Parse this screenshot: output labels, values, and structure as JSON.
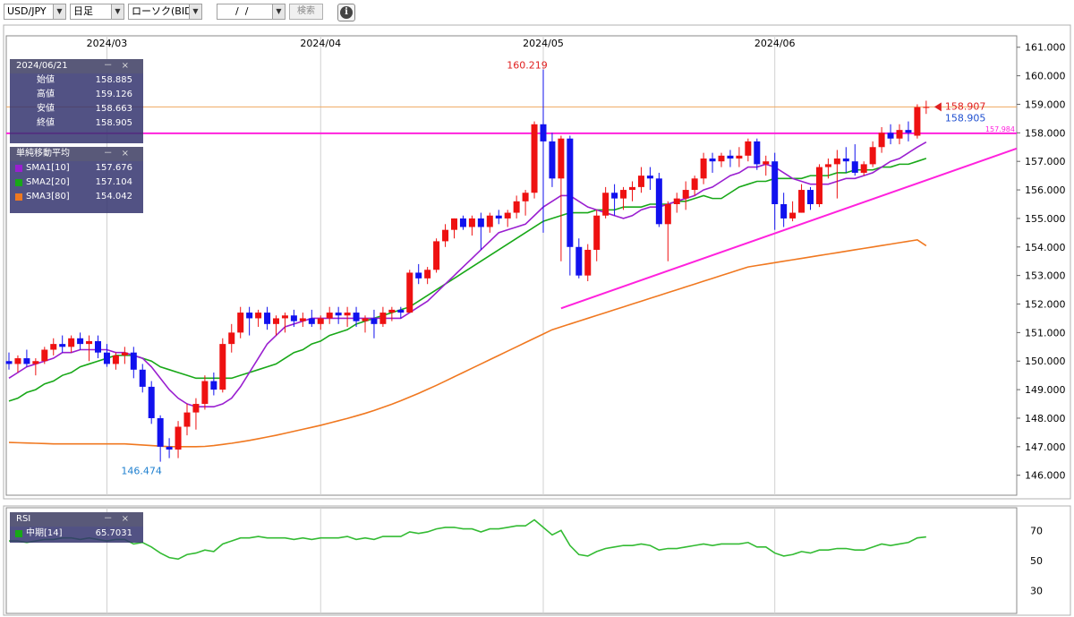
{
  "toolbar": {
    "symbol": "USD/JPY",
    "timeframe": "日足",
    "chart_kind": "ローソク(BID)",
    "date_value": "  /  /",
    "search_label": "検索",
    "info_icon": "info-icon"
  },
  "ohlc_panel": {
    "date": "2024/06/21",
    "minimize": "－",
    "close_btn": "×",
    "rows": [
      {
        "label": "始値",
        "value": "158.885"
      },
      {
        "label": "高値",
        "value": "159.126"
      },
      {
        "label": "安値",
        "value": "158.663"
      },
      {
        "label": "終値",
        "value": "158.905"
      }
    ]
  },
  "sma_panel": {
    "title": "単純移動平均",
    "minimize": "－",
    "close_btn": "×",
    "rows": [
      {
        "label": "SMA1[10]",
        "value": "157.676",
        "color": "#9a1fd0"
      },
      {
        "label": "SMA2[20]",
        "value": "157.104",
        "color": "#18a818"
      },
      {
        "label": "SMA3[80]",
        "value": "154.042",
        "color": "#f07820"
      }
    ]
  },
  "rsi_panel": {
    "title": "RSI",
    "minimize": "－",
    "close_btn": "×",
    "rows": [
      {
        "label": "中期[14]",
        "value": "65.7031",
        "color": "#18a818"
      }
    ]
  },
  "colors": {
    "up": "#ee1111",
    "down": "#1111ee",
    "sma10": "#9a1fd0",
    "sma20": "#18a818",
    "sma80": "#f07820",
    "trendline": "#ff22dd",
    "rsi": "#33bb33"
  },
  "chart_data": {
    "type": "candlestick",
    "x_labels": [
      "2024/03",
      "2024/04",
      "2024/05",
      "2024/06"
    ],
    "y_ticks": [
      "161.000",
      "160.000",
      "159.000",
      "158.000",
      "157.000",
      "156.000",
      "155.000",
      "154.000",
      "153.000",
      "152.000",
      "151.000",
      "150.000",
      "149.000",
      "148.000",
      "147.000",
      "146.000"
    ],
    "ylim": [
      145.3,
      161.4
    ],
    "annotations": {
      "high_label": "160.219",
      "low_label": "146.474",
      "last_bid": "158.907",
      "last_close": "158.905",
      "hline_label": "157.984",
      "hline_value": 157.984,
      "orange_line_value": 158.907
    },
    "candles": [
      [
        150.0,
        150.3,
        149.7,
        149.9
      ],
      [
        149.9,
        150.2,
        149.6,
        150.1
      ],
      [
        150.1,
        150.4,
        149.8,
        149.9
      ],
      [
        149.9,
        150.1,
        149.5,
        150.0
      ],
      [
        150.0,
        150.5,
        149.9,
        150.4
      ],
      [
        150.4,
        150.8,
        150.2,
        150.6
      ],
      [
        150.6,
        150.9,
        150.3,
        150.5
      ],
      [
        150.5,
        150.9,
        150.3,
        150.8
      ],
      [
        150.8,
        151.0,
        150.4,
        150.6
      ],
      [
        150.6,
        150.9,
        150.0,
        150.7
      ],
      [
        150.7,
        150.9,
        150.1,
        150.3
      ],
      [
        150.3,
        150.6,
        149.8,
        149.9
      ],
      [
        149.9,
        150.3,
        149.7,
        150.2
      ],
      [
        150.2,
        150.5,
        149.9,
        150.3
      ],
      [
        150.3,
        150.5,
        149.4,
        149.7
      ],
      [
        149.7,
        149.9,
        148.9,
        149.1
      ],
      [
        149.1,
        149.3,
        147.8,
        148.0
      ],
      [
        148.0,
        148.1,
        146.474,
        147.0
      ],
      [
        147.0,
        147.3,
        146.6,
        146.9
      ],
      [
        146.9,
        147.9,
        146.6,
        147.7
      ],
      [
        147.7,
        148.5,
        147.4,
        148.2
      ],
      [
        148.2,
        148.7,
        147.6,
        148.5
      ],
      [
        148.5,
        149.5,
        148.3,
        149.3
      ],
      [
        149.3,
        149.6,
        148.8,
        149.0
      ],
      [
        149.0,
        150.8,
        148.9,
        150.6
      ],
      [
        150.6,
        151.3,
        150.3,
        151.0
      ],
      [
        151.0,
        151.9,
        150.8,
        151.7
      ],
      [
        151.7,
        151.9,
        150.9,
        151.5
      ],
      [
        151.5,
        151.8,
        151.2,
        151.7
      ],
      [
        151.7,
        151.9,
        151.1,
        151.3
      ],
      [
        151.3,
        151.6,
        150.9,
        151.5
      ],
      [
        151.5,
        151.7,
        151.0,
        151.6
      ],
      [
        151.6,
        151.8,
        151.2,
        151.4
      ],
      [
        151.4,
        151.7,
        151.2,
        151.5
      ],
      [
        151.5,
        151.8,
        151.2,
        151.3
      ],
      [
        151.3,
        151.6,
        151.1,
        151.5
      ],
      [
        151.5,
        151.9,
        151.3,
        151.7
      ],
      [
        151.7,
        151.9,
        151.3,
        151.6
      ],
      [
        151.6,
        151.9,
        151.2,
        151.7
      ],
      [
        151.7,
        151.9,
        151.2,
        151.4
      ],
      [
        151.4,
        151.6,
        151.0,
        151.5
      ],
      [
        151.5,
        151.8,
        150.8,
        151.3
      ],
      [
        151.3,
        151.9,
        151.2,
        151.7
      ],
      [
        151.7,
        151.9,
        151.4,
        151.8
      ],
      [
        151.8,
        151.9,
        151.5,
        151.7
      ],
      [
        151.7,
        153.2,
        151.7,
        153.1
      ],
      [
        153.1,
        153.4,
        152.7,
        152.9
      ],
      [
        152.9,
        153.3,
        152.7,
        153.2
      ],
      [
        153.2,
        154.3,
        153.1,
        154.2
      ],
      [
        154.2,
        154.8,
        154.0,
        154.6
      ],
      [
        154.6,
        155.0,
        154.3,
        155.0
      ],
      [
        155.0,
        155.1,
        154.6,
        154.7
      ],
      [
        154.7,
        155.1,
        154.4,
        155.0
      ],
      [
        155.0,
        155.2,
        153.9,
        154.7
      ],
      [
        154.7,
        155.2,
        154.5,
        155.1
      ],
      [
        155.1,
        155.3,
        154.8,
        155.0
      ],
      [
        155.0,
        155.3,
        154.7,
        155.2
      ],
      [
        155.2,
        155.8,
        155.0,
        155.6
      ],
      [
        155.6,
        156.0,
        155.1,
        155.9
      ],
      [
        155.9,
        158.4,
        155.7,
        158.3
      ],
      [
        158.3,
        160.219,
        154.5,
        157.7
      ],
      [
        157.7,
        158.0,
        156.1,
        156.4
      ],
      [
        156.4,
        157.9,
        153.5,
        157.8
      ],
      [
        157.8,
        157.9,
        153.0,
        154.0
      ],
      [
        154.0,
        154.3,
        152.9,
        153.0
      ],
      [
        153.0,
        154.1,
        152.8,
        153.9
      ],
      [
        153.9,
        155.3,
        153.5,
        155.1
      ],
      [
        155.1,
        156.1,
        155.0,
        155.9
      ],
      [
        155.9,
        156.2,
        155.1,
        155.7
      ],
      [
        155.7,
        156.1,
        155.3,
        156.0
      ],
      [
        156.0,
        156.3,
        155.6,
        156.1
      ],
      [
        156.1,
        156.8,
        155.9,
        156.5
      ],
      [
        156.5,
        156.8,
        156.0,
        156.4
      ],
      [
        156.4,
        156.6,
        154.7,
        154.8
      ],
      [
        154.8,
        155.6,
        153.5,
        155.5
      ],
      [
        155.5,
        155.9,
        155.2,
        155.7
      ],
      [
        155.7,
        156.3,
        155.3,
        156.0
      ],
      [
        156.0,
        156.5,
        155.8,
        156.4
      ],
      [
        156.4,
        157.3,
        156.2,
        157.1
      ],
      [
        157.1,
        157.3,
        156.6,
        157.0
      ],
      [
        157.0,
        157.3,
        156.8,
        157.2
      ],
      [
        157.2,
        157.4,
        156.8,
        157.1
      ],
      [
        157.1,
        157.5,
        156.8,
        157.2
      ],
      [
        157.2,
        157.8,
        157.0,
        157.7
      ],
      [
        157.7,
        157.8,
        156.7,
        156.9
      ],
      [
        156.9,
        157.2,
        156.5,
        157.0
      ],
      [
        157.0,
        157.3,
        154.6,
        155.5
      ],
      [
        155.5,
        155.9,
        154.7,
        155.0
      ],
      [
        155.0,
        155.6,
        154.9,
        155.2
      ],
      [
        155.2,
        156.2,
        155.2,
        156.0
      ],
      [
        156.0,
        156.1,
        155.3,
        155.5
      ],
      [
        155.5,
        156.9,
        155.4,
        156.8
      ],
      [
        156.8,
        157.1,
        156.4,
        156.9
      ],
      [
        156.9,
        157.4,
        155.7,
        157.1
      ],
      [
        157.1,
        157.5,
        156.6,
        157.0
      ],
      [
        157.0,
        157.6,
        156.5,
        156.6
      ],
      [
        156.6,
        157.0,
        156.5,
        156.9
      ],
      [
        156.9,
        157.7,
        156.8,
        157.5
      ],
      [
        157.5,
        158.2,
        157.3,
        158.0
      ],
      [
        158.0,
        158.3,
        157.6,
        157.8
      ],
      [
        157.8,
        158.3,
        157.6,
        158.1
      ],
      [
        158.1,
        158.4,
        157.7,
        158.0
      ],
      [
        157.9,
        159.0,
        157.8,
        158.9
      ],
      [
        158.885,
        159.126,
        158.663,
        158.905
      ]
    ],
    "sma10": [
      149.4,
      149.6,
      149.8,
      149.9,
      150.0,
      150.1,
      150.3,
      150.3,
      150.4,
      150.4,
      150.4,
      150.4,
      150.3,
      150.3,
      150.2,
      150.1,
      149.8,
      149.4,
      149.0,
      148.7,
      148.5,
      148.4,
      148.4,
      148.4,
      148.5,
      148.7,
      149.1,
      149.6,
      150.1,
      150.6,
      150.9,
      151.2,
      151.3,
      151.4,
      151.5,
      151.5,
      151.5,
      151.5,
      151.5,
      151.5,
      151.5,
      151.5,
      151.5,
      151.5,
      151.5,
      151.7,
      151.9,
      152.1,
      152.4,
      152.7,
      153.0,
      153.3,
      153.6,
      153.9,
      154.2,
      154.5,
      154.6,
      154.7,
      154.8,
      155.1,
      155.4,
      155.6,
      155.8,
      155.8,
      155.6,
      155.4,
      155.3,
      155.2,
      155.1,
      155.0,
      155.1,
      155.3,
      155.4,
      155.4,
      155.5,
      155.6,
      155.7,
      155.8,
      156.0,
      156.1,
      156.3,
      156.5,
      156.6,
      156.8,
      156.8,
      156.9,
      156.8,
      156.6,
      156.4,
      156.3,
      156.2,
      156.2,
      156.2,
      156.3,
      156.4,
      156.4,
      156.5,
      156.6,
      156.8,
      157.0,
      157.1,
      157.3,
      157.5,
      157.676
    ],
    "sma20": [
      148.6,
      148.7,
      148.9,
      149.0,
      149.2,
      149.3,
      149.5,
      149.6,
      149.8,
      149.9,
      150.0,
      150.1,
      150.2,
      150.2,
      150.2,
      150.1,
      150.0,
      149.8,
      149.7,
      149.6,
      149.5,
      149.4,
      149.4,
      149.4,
      149.4,
      149.4,
      149.5,
      149.6,
      149.7,
      149.8,
      149.9,
      150.1,
      150.3,
      150.4,
      150.6,
      150.7,
      150.9,
      151.0,
      151.1,
      151.3,
      151.4,
      151.5,
      151.6,
      151.7,
      151.8,
      151.9,
      152.1,
      152.3,
      152.5,
      152.7,
      152.9,
      153.1,
      153.3,
      153.5,
      153.7,
      153.9,
      154.1,
      154.3,
      154.5,
      154.7,
      154.9,
      155.0,
      155.1,
      155.2,
      155.2,
      155.2,
      155.3,
      155.3,
      155.3,
      155.4,
      155.4,
      155.4,
      155.5,
      155.5,
      155.5,
      155.6,
      155.6,
      155.7,
      155.8,
      155.7,
      155.7,
      155.9,
      156.1,
      156.2,
      156.3,
      156.3,
      156.4,
      156.4,
      156.4,
      156.4,
      156.5,
      156.5,
      156.5,
      156.6,
      156.6,
      156.7,
      156.7,
      156.7,
      156.8,
      156.8,
      156.9,
      156.9,
      157.0,
      157.104
    ],
    "sma80": [
      147.15,
      147.14,
      147.13,
      147.12,
      147.11,
      147.1,
      147.1,
      147.1,
      147.1,
      147.1,
      147.1,
      147.1,
      147.1,
      147.1,
      147.08,
      147.06,
      147.04,
      147.02,
      147.0,
      147.0,
      147.0,
      147.0,
      147.01,
      147.04,
      147.08,
      147.12,
      147.17,
      147.22,
      147.28,
      147.34,
      147.4,
      147.47,
      147.54,
      147.61,
      147.68,
      147.75,
      147.83,
      147.91,
      147.99,
      148.08,
      148.17,
      148.27,
      148.38,
      148.49,
      148.61,
      148.74,
      148.87,
      149.01,
      149.15,
      149.3,
      149.45,
      149.6,
      149.75,
      149.9,
      150.05,
      150.2,
      150.35,
      150.5,
      150.65,
      150.8,
      150.95,
      151.1,
      151.2,
      151.3,
      151.4,
      151.5,
      151.6,
      151.7,
      151.8,
      151.9,
      152.0,
      152.1,
      152.2,
      152.3,
      152.4,
      152.5,
      152.6,
      152.7,
      152.8,
      152.9,
      153.0,
      153.1,
      153.2,
      153.3,
      153.35,
      153.4,
      153.45,
      153.5,
      153.55,
      153.6,
      153.65,
      153.7,
      153.75,
      153.8,
      153.85,
      153.9,
      153.95,
      154.0,
      154.05,
      154.1,
      154.15,
      154.2,
      154.25,
      154.042
    ],
    "rsi_ticks": [
      "70",
      "50",
      "30"
    ],
    "rsi": [
      63,
      63,
      62,
      63,
      64,
      64,
      65,
      65,
      64,
      65,
      64,
      63,
      64,
      64,
      61,
      62,
      59,
      55,
      52,
      51,
      54,
      55,
      57,
      56,
      61,
      63,
      65,
      65,
      66,
      65,
      65,
      65,
      64,
      65,
      64,
      65,
      65,
      65,
      66,
      64,
      65,
      64,
      66,
      66,
      66,
      69,
      68,
      69,
      71,
      72,
      72,
      71,
      71,
      69,
      71,
      71,
      72,
      73,
      73,
      77,
      72,
      67,
      70,
      60,
      54,
      53,
      56,
      58,
      59,
      60,
      60,
      61,
      60,
      57,
      58,
      58,
      59,
      60,
      61,
      60,
      61,
      61,
      61,
      62,
      59,
      59,
      55,
      53,
      54,
      56,
      55,
      57,
      57,
      58,
      58,
      57,
      57,
      59,
      61,
      60,
      61,
      62,
      65,
      65.7
    ]
  }
}
